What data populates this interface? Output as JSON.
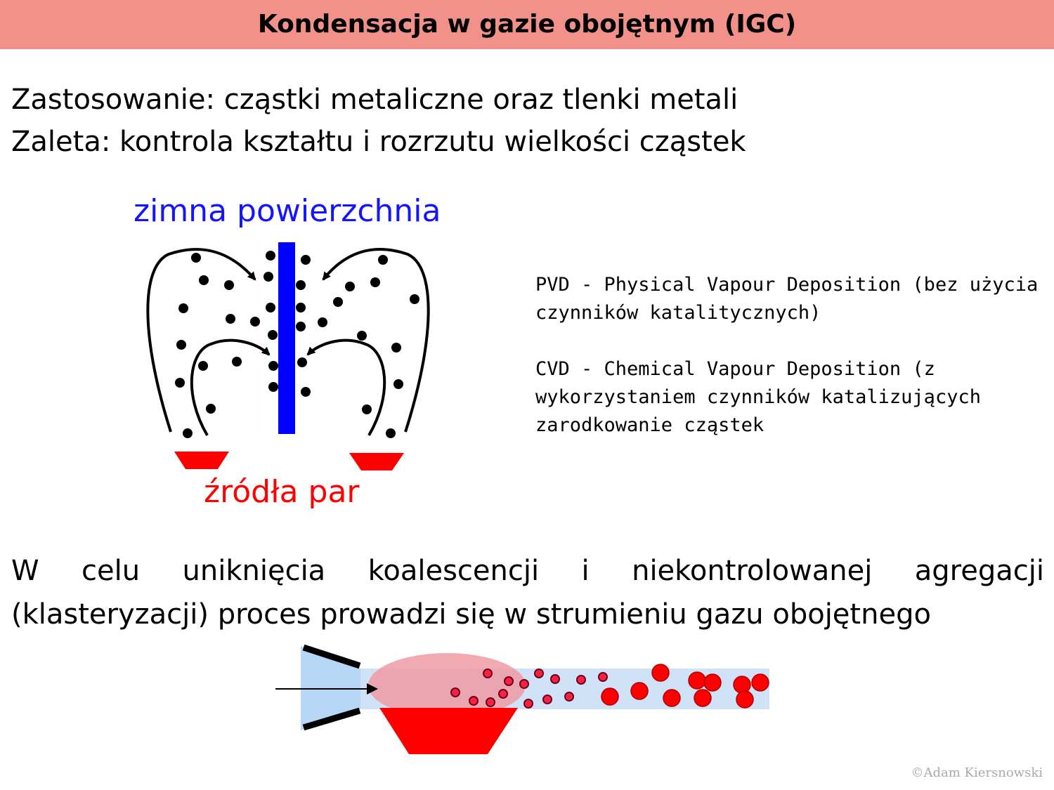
{
  "title": "Kondensacja w gazie obojętnym (IGC)",
  "intro": {
    "line1": "Zastosowanie: cząstki metaliczne oraz tlenki metali",
    "line2": "Zaleta: kontrola kształtu i rozrzutu wielkości cząstek"
  },
  "diagram": {
    "cold_surface_label": "zimna powierzchnia",
    "vapor_sources_label": "źródła par",
    "colors": {
      "cold_surface": "#0000ff",
      "source": "#ff0000",
      "particle": "#000000"
    }
  },
  "notes": {
    "pvd_line1": "PVD - Physical Vapour Deposition (bez użycia",
    "pvd_line2": "czynników katalitycznych)",
    "cvd_line1": "CVD - Chemical Vapour Deposition (z",
    "cvd_line2": "wykorzystaniem czynników katalizujących",
    "cvd_line3": "zarodkowanie cząstek"
  },
  "body": {
    "line1_words": [
      "W",
      "celu",
      "uniknięcia",
      "koalescencji",
      "i",
      "niekontrolowanej",
      "agregacji"
    ],
    "line2": "(klasteryzacji) proces prowadzi się w strumieniu gazu obojętnego"
  },
  "copyright": "©Adam Kiersnowski"
}
